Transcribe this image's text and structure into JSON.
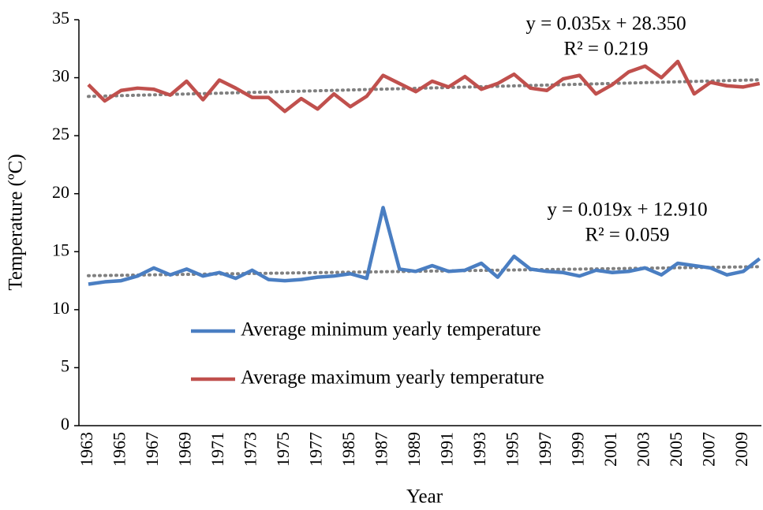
{
  "chart_data": {
    "type": "line",
    "y_label": "Temperature (ºC)",
    "x_label": "Year",
    "categories": [
      "1963",
      null,
      "1965",
      null,
      "1967",
      null,
      "1969",
      null,
      "1971",
      null,
      "1973",
      null,
      "1975",
      null,
      "1977",
      null,
      "1985",
      null,
      "1987",
      null,
      "1989",
      null,
      "1991",
      null,
      "1993",
      null,
      "1995",
      null,
      "1997",
      null,
      "1999",
      null,
      "2001",
      null,
      "2003",
      null,
      "2005",
      null,
      "2007",
      null,
      "2009",
      null
    ],
    "series": [
      {
        "name": "Average minimum yearly temperature",
        "color": "#4a7ec2",
        "values": [
          12.2,
          12.4,
          12.5,
          12.9,
          13.6,
          13.0,
          13.5,
          12.9,
          13.2,
          12.7,
          13.4,
          12.6,
          12.5,
          12.6,
          12.8,
          12.9,
          13.1,
          12.7,
          18.8,
          13.5,
          13.3,
          13.8,
          13.3,
          13.4,
          14.0,
          12.8,
          14.6,
          13.5,
          13.3,
          13.2,
          12.9,
          13.4,
          13.2,
          13.3,
          13.6,
          13.0,
          14.0,
          13.8,
          13.6,
          13.0,
          13.3,
          14.4
        ]
      },
      {
        "name": "Average maximum yearly temperature",
        "color": "#c0504d",
        "values": [
          29.4,
          28.0,
          28.9,
          29.1,
          29.0,
          28.5,
          29.7,
          28.1,
          29.8,
          29.1,
          28.3,
          28.3,
          27.1,
          28.2,
          27.3,
          28.6,
          27.5,
          28.4,
          30.2,
          29.5,
          28.8,
          29.7,
          29.2,
          30.1,
          29.0,
          29.5,
          30.3,
          29.1,
          28.9,
          29.9,
          30.2,
          28.6,
          29.4,
          30.5,
          31.0,
          30.0,
          31.4,
          28.6,
          29.6,
          29.3,
          29.2,
          29.5
        ]
      }
    ],
    "trendlines": [
      {
        "equation": "y = 0.019x + 12.910",
        "r2": "R² = 0.059",
        "slope": 0.019,
        "intercept": 12.91,
        "color": "#808080"
      },
      {
        "equation": "y = 0.035x + 28.350",
        "r2": "R² = 0.219",
        "slope": 0.035,
        "intercept": 28.35,
        "color": "#808080"
      }
    ],
    "ylim": [
      0,
      35
    ],
    "yticks": [
      0,
      5,
      10,
      15,
      20,
      25,
      30,
      35
    ]
  }
}
